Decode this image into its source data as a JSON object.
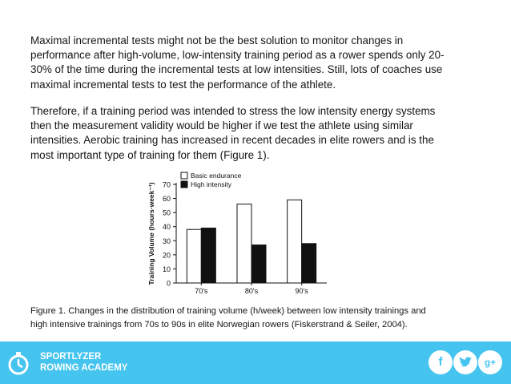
{
  "paragraphs": {
    "p1_lines": [
      "Maximal incremental tests might not be the best solution to monitor changes in",
      "performance after high-volume, low-intensity training period as a rower spends only 20-",
      "30% of the time during the incremental tests at low intensities. Still, lots of coaches use",
      "maximal incremental tests to test the performance of the athlete."
    ],
    "p2_lines": [
      "Therefore, if a training period was intended to stress the low intensity energy systems",
      "then the measurement validity would be higher if we test the athlete using similar",
      "intensities. Aerobic training has increased in recent decades in elite rowers and is the",
      "most important type of training for them (Figure 1)."
    ]
  },
  "chart_data": {
    "type": "bar",
    "categories": [
      "70's",
      "80's",
      "90's"
    ],
    "series": [
      {
        "name": "Basic endurance",
        "values": [
          38,
          56,
          59
        ],
        "color": "#ffffff"
      },
      {
        "name": "High intensity",
        "values": [
          39,
          27,
          28
        ],
        "color": "#111111"
      }
    ],
    "ylabel": "Training Volume (hours·week⁻¹)",
    "ylim": [
      0,
      70
    ],
    "yticks": [
      "0",
      "10",
      "20",
      "30",
      "40",
      "50",
      "60",
      "70"
    ],
    "legend_position": "top-left"
  },
  "caption_lines": [
    "Figure 1. Changes in the distribution of training volume (h/week) between low intensity trainings and",
    "high intensive trainings from 70s to 90s in elite Norwegian rowers (Fiskerstrand & Seiler, 2004)."
  ],
  "footer": {
    "brand_line1": "SPORTLYZER",
    "brand_line2": "ROWING ACADEMY",
    "facebook_glyph": "f",
    "google_glyph": "g+",
    "accent_color": "#45c4ef"
  }
}
